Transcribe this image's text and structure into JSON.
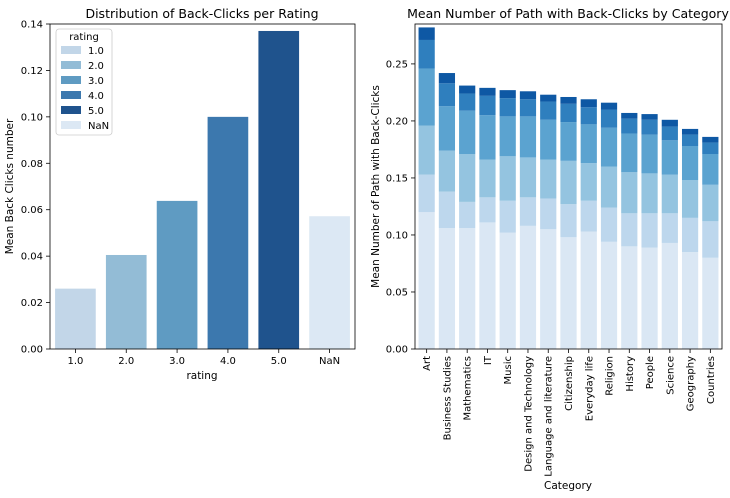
{
  "chart_data": [
    {
      "type": "bar",
      "title": "Distribution of Back-Clicks per Rating",
      "xlabel": "rating",
      "ylabel": "Mean Back Clicks number",
      "categories": [
        "1.0",
        "2.0",
        "3.0",
        "4.0",
        "5.0",
        "NaN"
      ],
      "values": [
        0.026,
        0.0405,
        0.0638,
        0.1,
        0.137,
        0.0572
      ],
      "colors": [
        "#c2d6e8",
        "#93bcd6",
        "#5f9bc2",
        "#3c78ae",
        "#1f538d",
        "#dce8f4"
      ],
      "ylim": [
        0,
        0.14
      ],
      "yticks": [
        0.0,
        0.02,
        0.04,
        0.06,
        0.08,
        0.1,
        0.12,
        0.14
      ],
      "ytick_labels": [
        "0.00",
        "0.02",
        "0.04",
        "0.06",
        "0.08",
        "0.10",
        "0.12",
        "0.14"
      ],
      "legend": {
        "title": "rating",
        "placement": "top-left",
        "entries": [
          {
            "label": "1.0",
            "color": "#c2d6e8"
          },
          {
            "label": "2.0",
            "color": "#93bcd6"
          },
          {
            "label": "3.0",
            "color": "#5f9bc2"
          },
          {
            "label": "4.0",
            "color": "#3c78ae"
          },
          {
            "label": "5.0",
            "color": "#1f538d"
          },
          {
            "label": "NaN",
            "color": "#dce8f4"
          }
        ]
      },
      "grid": false
    },
    {
      "type": "bar",
      "stacked": true,
      "title": "Mean Number of Path with Back-Clicks by Category",
      "xlabel": "Category",
      "ylabel": "Mean Number of Path with Back-Clicks",
      "categories": [
        "Art",
        "Business Studies",
        "Mathematics",
        "IT",
        "Music",
        "Design and Technology",
        "Language and literature",
        "Citizenship",
        "Everyday life",
        "Religion",
        "History",
        "People",
        "Science",
        "Geography",
        "Countries"
      ],
      "series": [
        {
          "color": "#dae7f4",
          "values": [
            0.12,
            0.106,
            0.106,
            0.111,
            0.102,
            0.108,
            0.105,
            0.098,
            0.103,
            0.094,
            0.09,
            0.089,
            0.093,
            0.085,
            0.08
          ]
        },
        {
          "color": "#bdd7ed",
          "values": [
            0.033,
            0.032,
            0.023,
            0.022,
            0.028,
            0.025,
            0.027,
            0.029,
            0.027,
            0.03,
            0.029,
            0.03,
            0.026,
            0.03,
            0.032
          ]
        },
        {
          "color": "#94c4e0",
          "values": [
            0.043,
            0.036,
            0.042,
            0.033,
            0.039,
            0.035,
            0.034,
            0.038,
            0.033,
            0.036,
            0.036,
            0.035,
            0.034,
            0.033,
            0.032
          ]
        },
        {
          "color": "#5ba3d0",
          "values": [
            0.05,
            0.039,
            0.038,
            0.039,
            0.035,
            0.036,
            0.035,
            0.034,
            0.034,
            0.034,
            0.034,
            0.034,
            0.03,
            0.03,
            0.027
          ]
        },
        {
          "color": "#2f7fbe",
          "values": [
            0.025,
            0.02,
            0.015,
            0.017,
            0.016,
            0.015,
            0.016,
            0.016,
            0.015,
            0.016,
            0.013,
            0.013,
            0.012,
            0.01,
            0.01
          ]
        },
        {
          "color": "#0e58a4",
          "values": [
            0.011,
            0.009,
            0.007,
            0.007,
            0.007,
            0.007,
            0.006,
            0.006,
            0.007,
            0.006,
            0.005,
            0.005,
            0.006,
            0.005,
            0.005
          ]
        }
      ],
      "ylim": [
        0,
        0.285
      ],
      "yticks": [
        0.0,
        0.05,
        0.1,
        0.15,
        0.2,
        0.25
      ],
      "ytick_labels": [
        "0.00",
        "0.05",
        "0.10",
        "0.15",
        "0.20",
        "0.25"
      ],
      "grid": false
    }
  ]
}
